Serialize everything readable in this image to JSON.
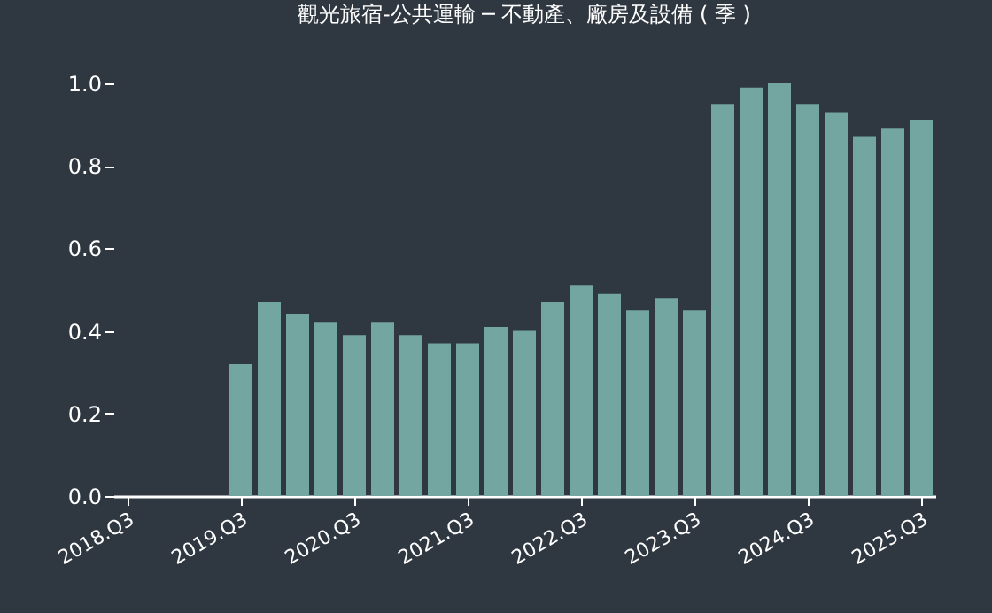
{
  "chart_data": {
    "type": "bar",
    "title": "觀光旅宿-公共運輸 ─ 不動產、廠房及設備 ( 季 )",
    "categories": [
      "2018.Q3",
      null,
      null,
      null,
      "2019.Q3",
      null,
      null,
      null,
      "2020.Q3",
      null,
      null,
      null,
      "2021.Q3",
      null,
      null,
      null,
      "2022.Q3",
      null,
      null,
      null,
      "2023.Q3",
      null,
      null,
      null,
      "2024.Q3",
      null,
      null,
      null,
      "2025.Q3"
    ],
    "values": [
      null,
      null,
      null,
      null,
      0.32,
      0.47,
      0.44,
      0.42,
      0.39,
      0.42,
      0.39,
      0.37,
      0.37,
      0.41,
      0.4,
      0.47,
      0.51,
      0.49,
      0.45,
      0.48,
      0.45,
      0.95,
      0.99,
      1.0,
      0.95,
      0.93,
      0.87,
      0.89,
      0.91
    ],
    "color": "#73a6a0",
    "ylim": [
      0,
      1
    ],
    "yticks": [
      {
        "value": 0,
        "label": "0.0"
      },
      {
        "value": 0.2,
        "label": "0.2"
      },
      {
        "value": 0.4,
        "label": "0.4"
      },
      {
        "value": 0.6,
        "label": "0.6"
      },
      {
        "value": 0.8,
        "label": "0.8"
      },
      {
        "value": 1,
        "label": "1.0"
      }
    ],
    "grid": false,
    "legend": false
  }
}
